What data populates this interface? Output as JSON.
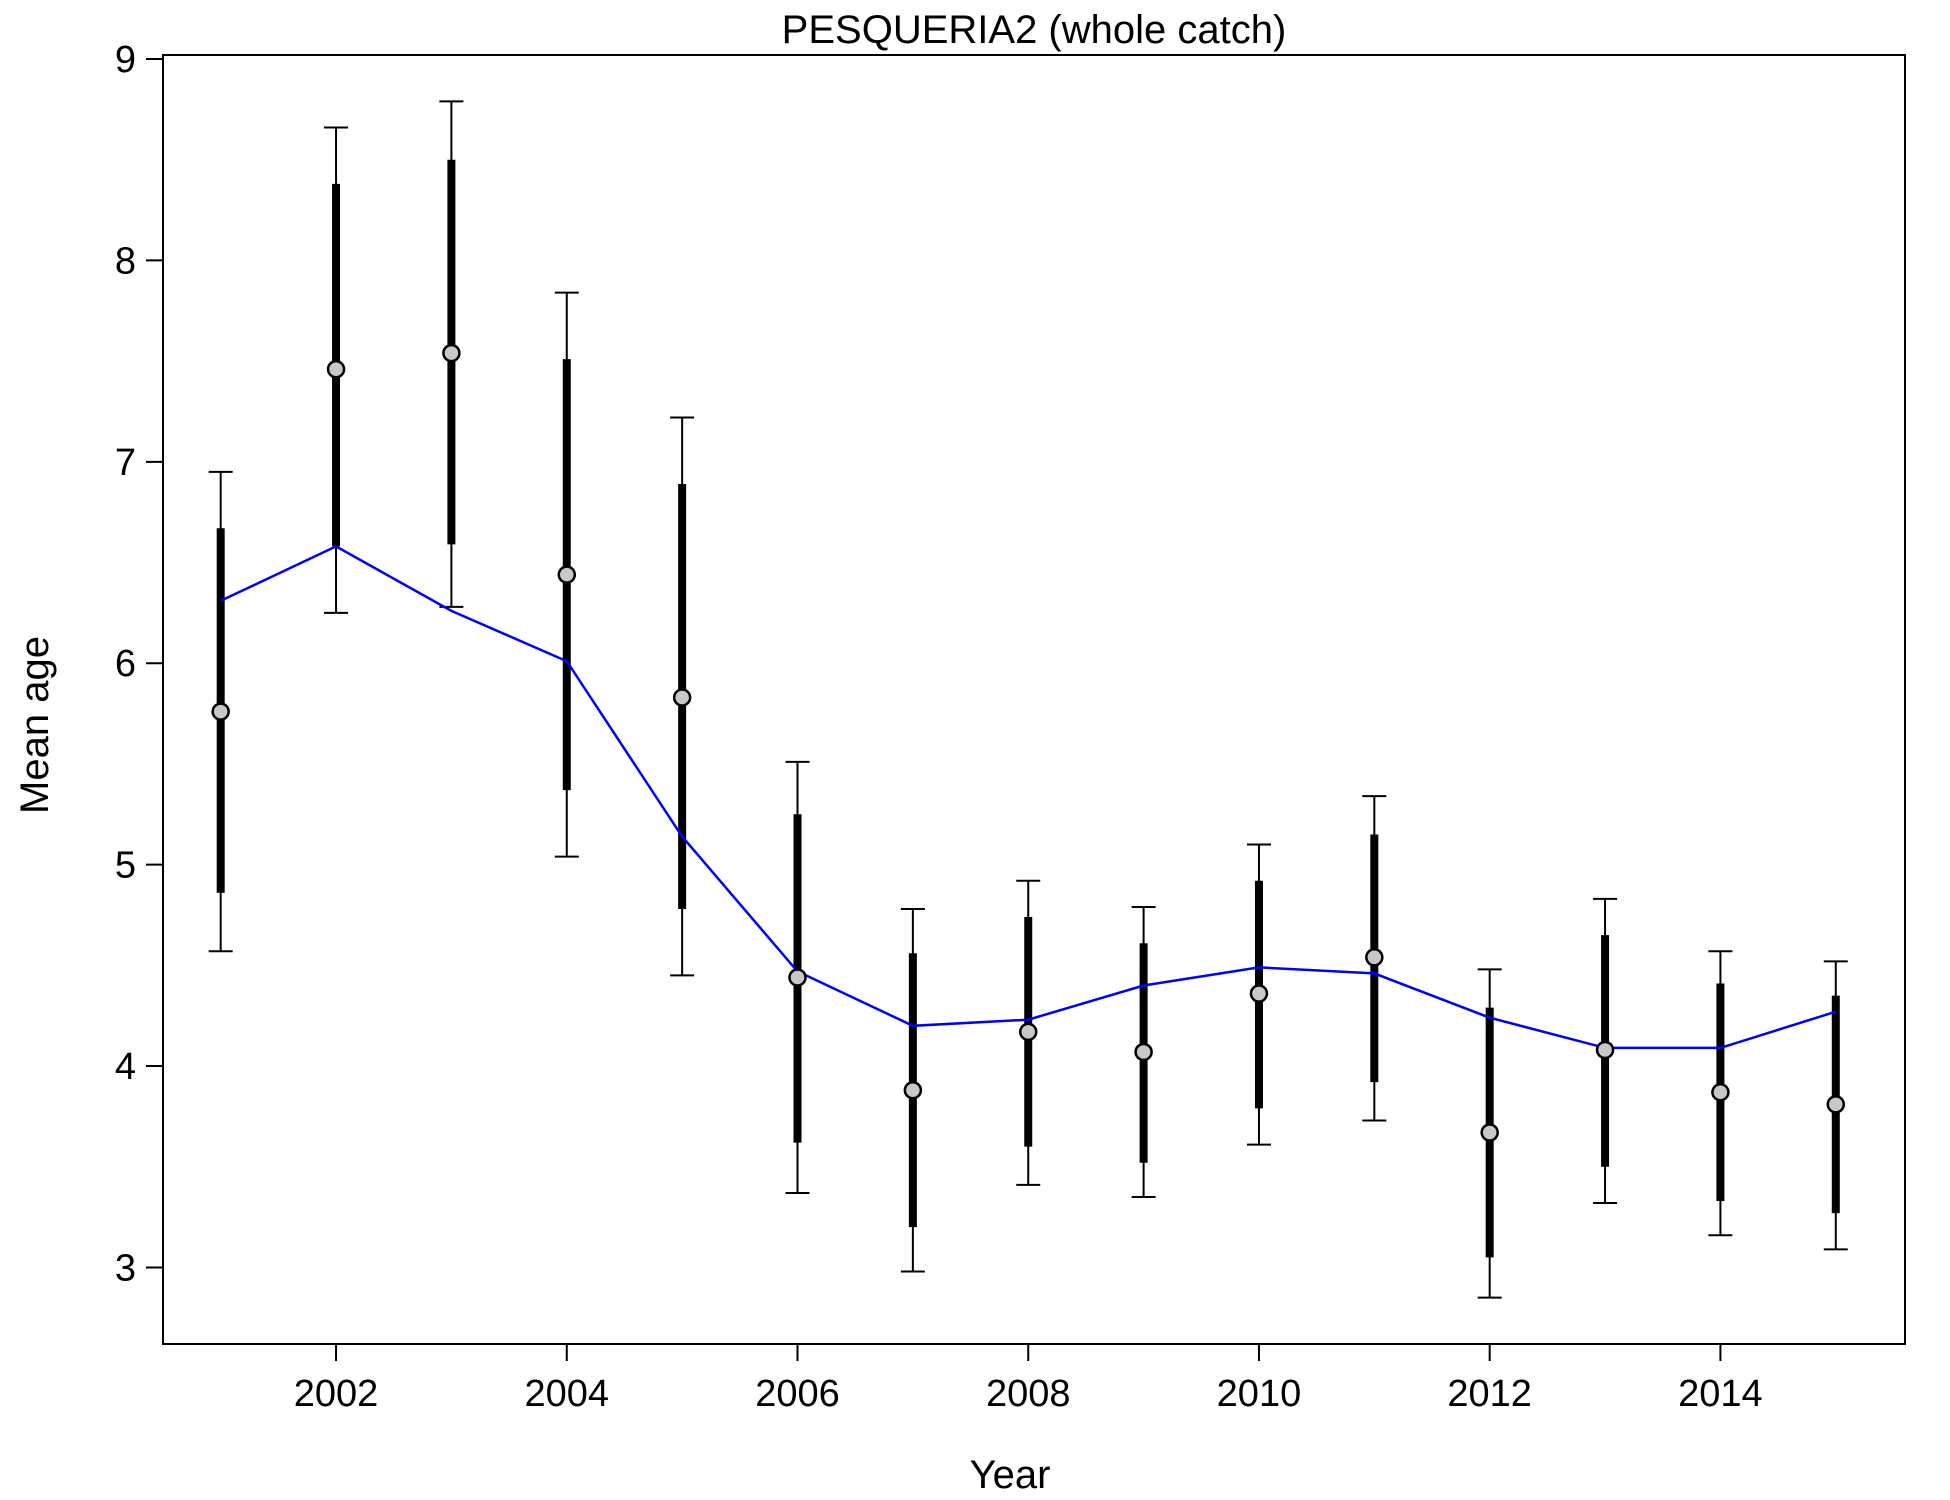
{
  "chart_data": {
    "type": "line",
    "title": "PESQUERIA2 (whole catch)",
    "xlabel": "Year",
    "ylabel": "Mean age",
    "xlim": [
      2000.5,
      2015.6
    ],
    "ylim": [
      2.62,
      9.02
    ],
    "x_ticks": [
      2002,
      2004,
      2006,
      2008,
      2010,
      2012,
      2014
    ],
    "x_tick_labels": [
      "2002",
      "2004",
      "2006",
      "2008",
      "2010",
      "2012",
      "2014"
    ],
    "y_ticks": [
      3,
      4,
      5,
      6,
      7,
      8,
      9
    ],
    "y_tick_labels": [
      "3",
      "4",
      "5",
      "6",
      "7",
      "8",
      "9"
    ],
    "grid": false,
    "colors": {
      "expected_line": "#0000ff",
      "observed_fill": "#c8c8c8",
      "intervals": "#000000"
    },
    "series": [
      {
        "role": "observed",
        "x": [
          2001,
          2002,
          2003,
          2004,
          2005,
          2006,
          2007,
          2008,
          2009,
          2010,
          2011,
          2012,
          2013,
          2014,
          2015
        ],
        "values": [
          5.76,
          7.46,
          7.54,
          6.44,
          5.83,
          4.44,
          3.88,
          4.17,
          4.07,
          4.36,
          4.54,
          3.67,
          4.08,
          3.87,
          3.81
        ]
      },
      {
        "role": "expected",
        "x": [
          2001,
          2002,
          2003,
          2004,
          2005,
          2006,
          2007,
          2008,
          2009,
          2010,
          2011,
          2012,
          2013,
          2014,
          2015
        ],
        "values": [
          6.31,
          6.58,
          6.26,
          6.01,
          5.14,
          4.47,
          4.2,
          4.23,
          4.4,
          4.49,
          4.46,
          4.24,
          4.09,
          4.09,
          4.27
        ]
      }
    ],
    "inner_interval": {
      "lower": [
        4.86,
        6.58,
        6.59,
        5.37,
        4.78,
        3.62,
        3.2,
        3.6,
        3.52,
        3.79,
        3.92,
        3.05,
        3.5,
        3.33,
        3.27
      ],
      "upper": [
        6.67,
        8.38,
        8.5,
        7.51,
        6.89,
        5.25,
        4.56,
        4.74,
        4.61,
        4.92,
        5.15,
        4.29,
        4.65,
        4.41,
        4.35
      ]
    },
    "outer_interval": {
      "lower": [
        4.57,
        6.25,
        6.28,
        5.04,
        4.45,
        3.37,
        2.98,
        3.41,
        3.35,
        3.61,
        3.73,
        2.85,
        3.32,
        3.16,
        3.09
      ],
      "upper": [
        6.95,
        8.66,
        8.79,
        7.84,
        7.22,
        5.51,
        4.78,
        4.92,
        4.79,
        5.1,
        5.34,
        4.48,
        4.83,
        4.57,
        4.52
      ]
    }
  }
}
